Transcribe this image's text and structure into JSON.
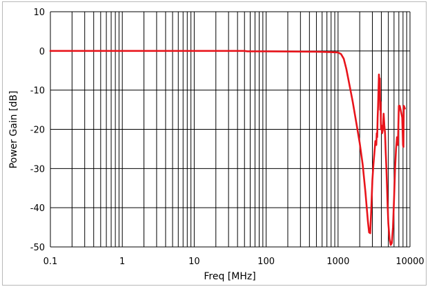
{
  "chart_data": {
    "type": "line",
    "title": "",
    "xlabel": "Freq [MHz]",
    "ylabel": "Power Gain [dB]",
    "x_scale": "log",
    "xlim": [
      0.1,
      10000
    ],
    "ylim": [
      -50,
      10
    ],
    "x_tick_labels": [
      "0.1",
      "1",
      "10",
      "100",
      "1000",
      "10000"
    ],
    "y_tick_labels": [
      "10",
      "0",
      "-10",
      "-20",
      "-30",
      "-40",
      "-50"
    ],
    "grid": true,
    "legend": "none",
    "colors": {
      "series": "#e8141b",
      "grid": "#000000"
    },
    "series": [
      {
        "x": [
          0.1,
          1,
          10,
          50,
          55,
          100,
          500,
          800,
          1000,
          1100,
          1200,
          1300,
          1400,
          1600,
          1800,
          2000,
          2200,
          2400,
          2600,
          2700,
          2800,
          2900,
          3000,
          3100,
          3200,
          3300,
          3400,
          3450,
          3500,
          3550,
          3600,
          3650,
          3700,
          3750,
          3800,
          3850,
          3900,
          3950,
          4000,
          4100,
          4200,
          4300,
          4400,
          4500,
          4600,
          4700,
          4800,
          4900,
          5000,
          5200,
          5400,
          5600,
          5800,
          6000,
          6200,
          6400,
          6600,
          6800,
          7000,
          7200,
          7400,
          7600,
          7800,
          8000,
          8100,
          8200,
          8300,
          8400,
          8500
        ],
        "y": [
          0,
          0,
          0,
          0,
          -0.1,
          -0.1,
          -0.2,
          -0.3,
          -0.4,
          -0.8,
          -2,
          -4.5,
          -7.5,
          -13,
          -18.5,
          -23.5,
          -29,
          -36,
          -43.5,
          -46.3,
          -46.5,
          -40,
          -33,
          -29,
          -26,
          -23,
          -24,
          -21,
          -22,
          -17,
          -14,
          -10,
          -6,
          -8,
          -7,
          -15,
          -13,
          -20,
          -19,
          -21,
          -20,
          -16,
          -19,
          -21,
          -26,
          -30,
          -35,
          -40,
          -44,
          -48,
          -49.5,
          -49,
          -45,
          -38,
          -30,
          -25,
          -22,
          -24,
          -14,
          -14,
          -15,
          -16,
          -17,
          -24,
          -24.5,
          -14,
          -14.2,
          -14.5,
          -14.7
        ]
      }
    ]
  }
}
